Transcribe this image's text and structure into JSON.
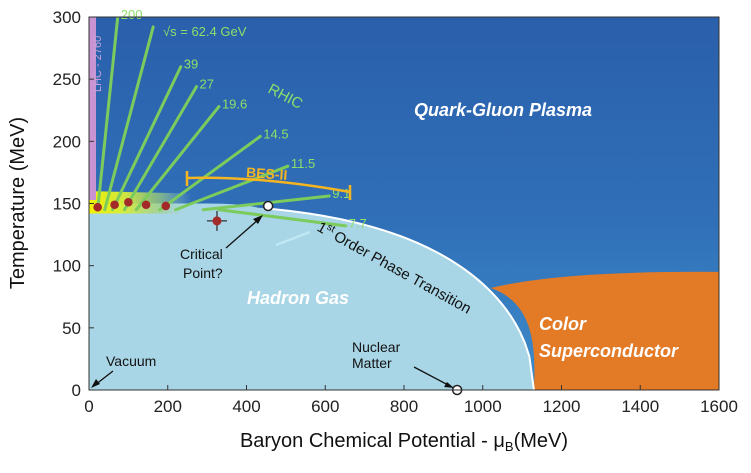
{
  "axes": {
    "xlabel_main": "Baryon Chemical Potential - μ",
    "xlabel_sub": "B",
    "xlabel_unit": "(MeV)",
    "ylabel": "Temperature (MeV)",
    "x_ticks": [
      "0",
      "200",
      "400",
      "600",
      "800",
      "1000",
      "1200",
      "1400",
      "1600"
    ],
    "y_ticks": [
      "0",
      "50",
      "100",
      "150",
      "200",
      "250",
      "300"
    ],
    "xlim": [
      0,
      1600
    ],
    "ylim": [
      0,
      300
    ]
  },
  "regions": {
    "qgp": "Quark-Gluon Plasma",
    "hadron_gas": "Hadron Gas",
    "color_sc_line1": "Color",
    "color_sc_line2": "Superconductor"
  },
  "labels": {
    "lhc": "LHC - 2760",
    "rhic": "RHIC",
    "bes": "BES-II",
    "energy_prefix": "√s = 62.4 GeV",
    "transition_sup": "st",
    "transition_1": "1",
    "transition_text": "Order Phase Transition",
    "critical_1": "Critical",
    "critical_2": "Point?",
    "vacuum": "Vacuum",
    "nuclear_1": "Nuclear",
    "nuclear_2": "Matter"
  },
  "beam_energies": [
    {
      "label": "200",
      "mu_start": 22,
      "mu_end": 73
    },
    {
      "label": "",
      "mu_start": 40,
      "mu_end": 163
    },
    {
      "label": "39",
      "mu_start": 60,
      "mu_end": 233
    },
    {
      "label": "27",
      "mu_start": 90,
      "mu_end": 273
    },
    {
      "label": "19.6",
      "mu_start": 120,
      "mu_end": 330
    },
    {
      "label": "14.5",
      "mu_start": 180,
      "mu_end": 435
    },
    {
      "label": "11.5",
      "mu_start": 220,
      "mu_end": 505
    },
    {
      "label": "9.1",
      "mu_start": 290,
      "mu_end": 610
    },
    {
      "label": "7.7",
      "mu_start": 330,
      "mu_end": 652
    }
  ],
  "freezeout_points": [
    {
      "mu": 22,
      "T": 147
    },
    {
      "mu": 65,
      "T": 149
    },
    {
      "mu": 100,
      "T": 151
    },
    {
      "mu": 145,
      "T": 149
    },
    {
      "mu": 195,
      "T": 148
    }
  ],
  "critical_point_estimate": {
    "mu": 325,
    "T": 136
  },
  "critical_point": {
    "mu": 455,
    "T": 148
  },
  "nuclear_matter": {
    "mu": 935,
    "T": 0
  },
  "colors": {
    "qgp_top": "#2a63ad",
    "qgp_bottom": "#3b87c8",
    "hadron": "#a9d6e6",
    "color_sc": "#e37a26",
    "beam_lines": "#7ccb5d",
    "bes": "#f4b521",
    "points": "#a42a2a",
    "lhc_band": "#c994d2"
  }
}
